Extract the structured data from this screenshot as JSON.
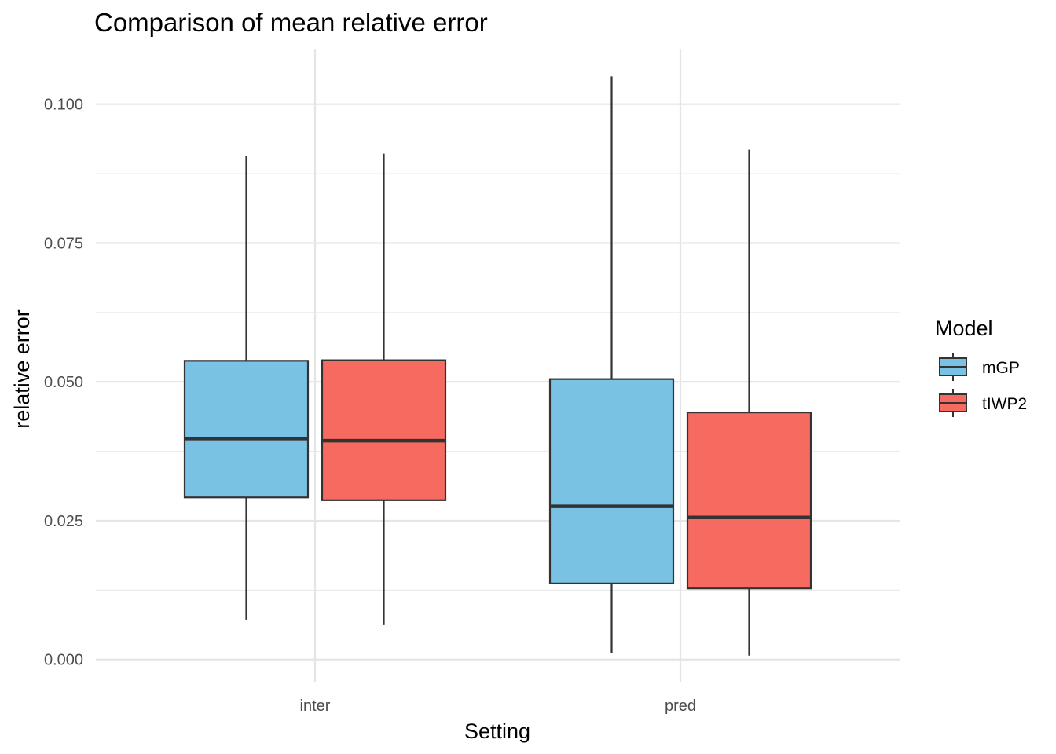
{
  "chart_data": {
    "type": "boxplot",
    "title": "Comparison of mean relative error",
    "xlabel": "Setting",
    "ylabel": "relative error",
    "categories": [
      "inter",
      "pred"
    ],
    "ylim": [
      -0.004,
      0.11
    ],
    "yticks": [
      0.0,
      0.025,
      0.05,
      0.075,
      0.1
    ],
    "ytick_labels": [
      "0.000",
      "0.025",
      "0.050",
      "0.075",
      "0.100"
    ],
    "grid": true,
    "legend": {
      "title": "Model",
      "position": "right"
    },
    "series": [
      {
        "name": "mGP",
        "color": "#79C2E4",
        "boxes": [
          {
            "category": "inter",
            "whisker_low": 0.0072,
            "q1": 0.0292,
            "median": 0.0398,
            "q3": 0.0538,
            "whisker_high": 0.0907
          },
          {
            "category": "pred",
            "whisker_low": 0.0011,
            "q1": 0.0137,
            "median": 0.0276,
            "q3": 0.0505,
            "whisker_high": 0.105
          }
        ]
      },
      {
        "name": "tIWP2",
        "color": "#F66A60",
        "boxes": [
          {
            "category": "inter",
            "whisker_low": 0.0062,
            "q1": 0.0287,
            "median": 0.0394,
            "q3": 0.0539,
            "whisker_high": 0.0911
          },
          {
            "category": "pred",
            "whisker_low": 0.0007,
            "q1": 0.0128,
            "median": 0.0256,
            "q3": 0.0445,
            "whisker_high": 0.0918
          }
        ]
      }
    ]
  }
}
